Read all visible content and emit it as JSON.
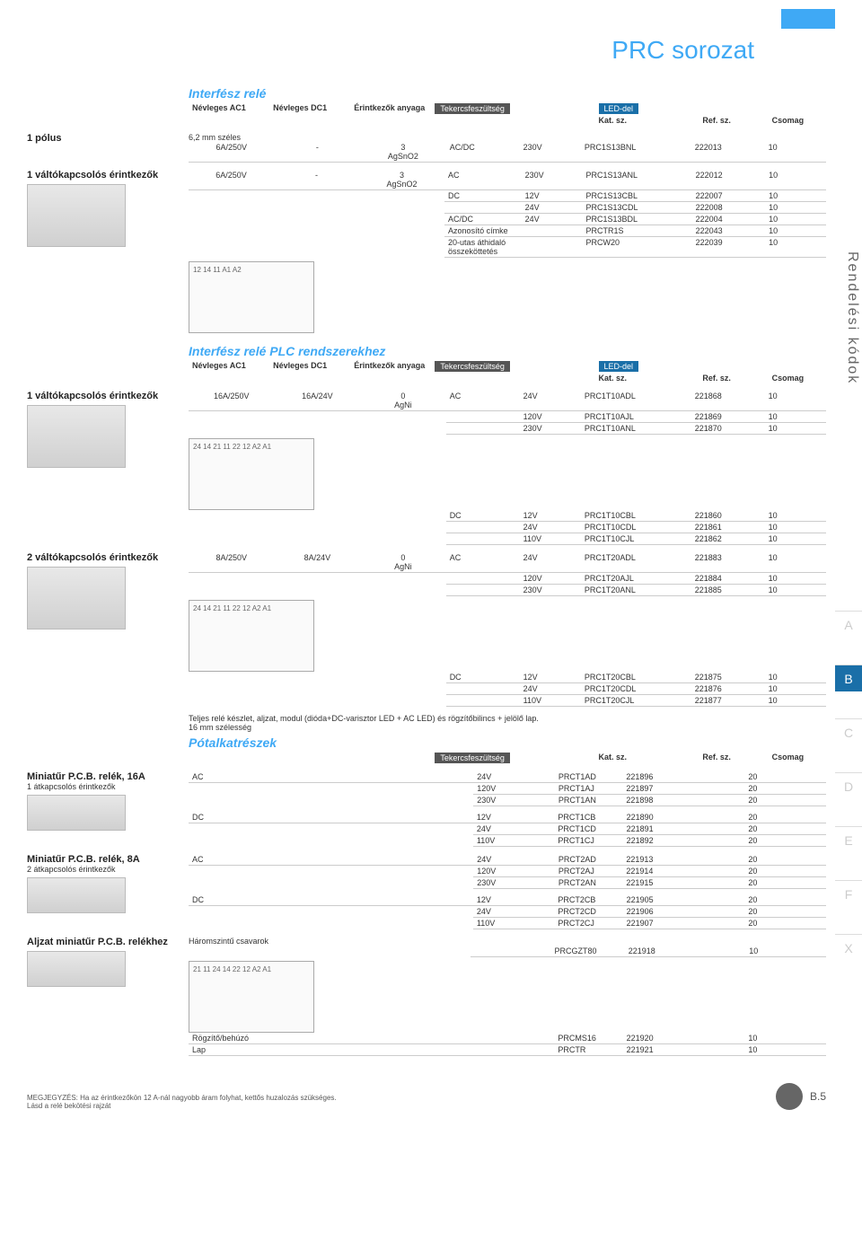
{
  "page_title": "PRC sorozat",
  "side_label": "Rendelési kódok",
  "vtabs": [
    "A",
    "B",
    "C",
    "D",
    "E",
    "F",
    "X"
  ],
  "vtab_active": "B",
  "page_number": "B.5",
  "columns": {
    "ac1": "Névleges\nAC1",
    "dc1": "Névleges\nDC1",
    "contact": "Érintkezők\nanyaga",
    "coil": "Tekercsfeszültség",
    "led": "LED-del",
    "kat": "Kat. sz.",
    "ref": "Ref. sz.",
    "pack": "Csomag"
  },
  "section1": {
    "title": "Interfész relé",
    "width_note": "6,2 mm széles",
    "groups": [
      {
        "label": "1 pólus",
        "ac1": "6A/250V",
        "dc1": "-",
        "contact": "3\nAgSnO2",
        "rows": [
          [
            "AC/DC",
            "230V",
            "PRC1S13BNL",
            "222013",
            "10"
          ]
        ]
      },
      {
        "label": "1 váltókapcsolós érintkezők",
        "ac1": "6A/250V",
        "dc1": "-",
        "contact": "3\nAgSnO2",
        "rows": [
          [
            "AC",
            "230V",
            "PRC1S13ANL",
            "222012",
            "10"
          ],
          [
            "DC",
            "12V",
            "PRC1S13CBL",
            "222007",
            "10"
          ],
          [
            "",
            "24V",
            "PRC1S13CDL",
            "222008",
            "10"
          ],
          [
            "AC/DC",
            "24V",
            "PRC1S13BDL",
            "222004",
            "10"
          ],
          [
            "Azonosító címke",
            "",
            "PRCTR1S",
            "222043",
            "10"
          ],
          [
            "20-utas áthidaló összeköttetés",
            "",
            "PRCW20",
            "222039",
            "10"
          ]
        ],
        "has_image": true,
        "diagram_label": "12 14 11 A1 A2"
      }
    ]
  },
  "section2": {
    "title": "Interfész relé PLC rendszerekhez",
    "groups": [
      {
        "label": "1 váltókapcsolós érintkezők",
        "ac1": "16A/250V",
        "dc1": "16A/24V",
        "contact": "0\nAgNi",
        "rows_ac": [
          [
            "AC",
            "24V",
            "PRC1T10ADL",
            "221868",
            "10"
          ],
          [
            "",
            "120V",
            "PRC1T10AJL",
            "221869",
            "10"
          ],
          [
            "",
            "230V",
            "PRC1T10ANL",
            "221870",
            "10"
          ]
        ],
        "rows_dc": [
          [
            "DC",
            "12V",
            "PRC1T10CBL",
            "221860",
            "10"
          ],
          [
            "",
            "24V",
            "PRC1T10CDL",
            "221861",
            "10"
          ],
          [
            "",
            "110V",
            "PRC1T10CJL",
            "221862",
            "10"
          ]
        ],
        "has_image": true,
        "diagram_label": "24 14 21 11 22 12 A2 A1"
      },
      {
        "label": "2 váltókapcsolós érintkezők",
        "ac1": "8A/250V",
        "dc1": "8A/24V",
        "contact": "0\nAgNi",
        "rows_ac": [
          [
            "AC",
            "24V",
            "PRC1T20ADL",
            "221883",
            "10"
          ],
          [
            "",
            "120V",
            "PRC1T20AJL",
            "221884",
            "10"
          ],
          [
            "",
            "230V",
            "PRC1T20ANL",
            "221885",
            "10"
          ]
        ],
        "rows_dc": [
          [
            "DC",
            "12V",
            "PRC1T20CBL",
            "221875",
            "10"
          ],
          [
            "",
            "24V",
            "PRC1T20CDL",
            "221876",
            "10"
          ],
          [
            "",
            "110V",
            "PRC1T20CJL",
            "221877",
            "10"
          ]
        ],
        "has_image": true,
        "diagram_label": "24 14 21 11 22 12 A2 A1"
      }
    ]
  },
  "section3": {
    "note": "Teljes relé készlet, aljzat, modul (dióda+DC-varisztor LED + AC LED) és rögzítőbilincs + jelölő lap.\n16 mm szélesség",
    "title": "Pótalkatrészek",
    "cols": [
      "Tekercsfeszültség",
      "",
      "Kat. sz.",
      "Ref. sz.",
      "Csomag"
    ],
    "groups": [
      {
        "label": "Miniatűr P.C.B. relék, 16A",
        "sub": "1 átkapcsolós érintkezők",
        "rows_ac": [
          [
            "AC",
            "24V",
            "PRCT1AD",
            "221896",
            "20"
          ],
          [
            "",
            "120V",
            "PRCT1AJ",
            "221897",
            "20"
          ],
          [
            "",
            "230V",
            "PRCT1AN",
            "221898",
            "20"
          ]
        ],
        "rows_dc": [
          [
            "DC",
            "12V",
            "PRCT1CB",
            "221890",
            "20"
          ],
          [
            "",
            "24V",
            "PRCT1CD",
            "221891",
            "20"
          ],
          [
            "",
            "110V",
            "PRCT1CJ",
            "221892",
            "20"
          ]
        ],
        "has_image": true
      },
      {
        "label": "Miniatűr P.C.B. relék, 8A",
        "sub": "2 átkapcsolós érintkezők",
        "rows_ac": [
          [
            "AC",
            "24V",
            "PRCT2AD",
            "221913",
            "20"
          ],
          [
            "",
            "120V",
            "PRCT2AJ",
            "221914",
            "20"
          ],
          [
            "",
            "230V",
            "PRCT2AN",
            "221915",
            "20"
          ]
        ],
        "rows_dc": [
          [
            "DC",
            "12V",
            "PRCT2CB",
            "221905",
            "20"
          ],
          [
            "",
            "24V",
            "PRCT2CD",
            "221906",
            "20"
          ],
          [
            "",
            "110V",
            "PRCT2CJ",
            "221907",
            "20"
          ]
        ],
        "has_image": true
      },
      {
        "label": "Aljzat miniatűr P.C.B. relékhez",
        "sub": "",
        "extra_label": "Háromszintű csavarok",
        "rows_top": [
          [
            "",
            "",
            "PRCGZT80",
            "221918",
            "10"
          ]
        ],
        "rows_bottom": [
          [
            "Rögzítő/behúzó",
            "",
            "PRCMS16",
            "221920",
            "10"
          ],
          [
            "Lap",
            "",
            "PRCTR",
            "221921",
            "10"
          ]
        ],
        "has_image": true,
        "diagram_label": "21 11 24 14 22 12 A2 A1"
      }
    ]
  },
  "footer_note": "MEGJEGYZÉS: Ha az érintkezőkön 12 A-nál nagyobb áram folyhat, kettős huzalozás szükséges.\nLásd a relé bekötési rajzát"
}
